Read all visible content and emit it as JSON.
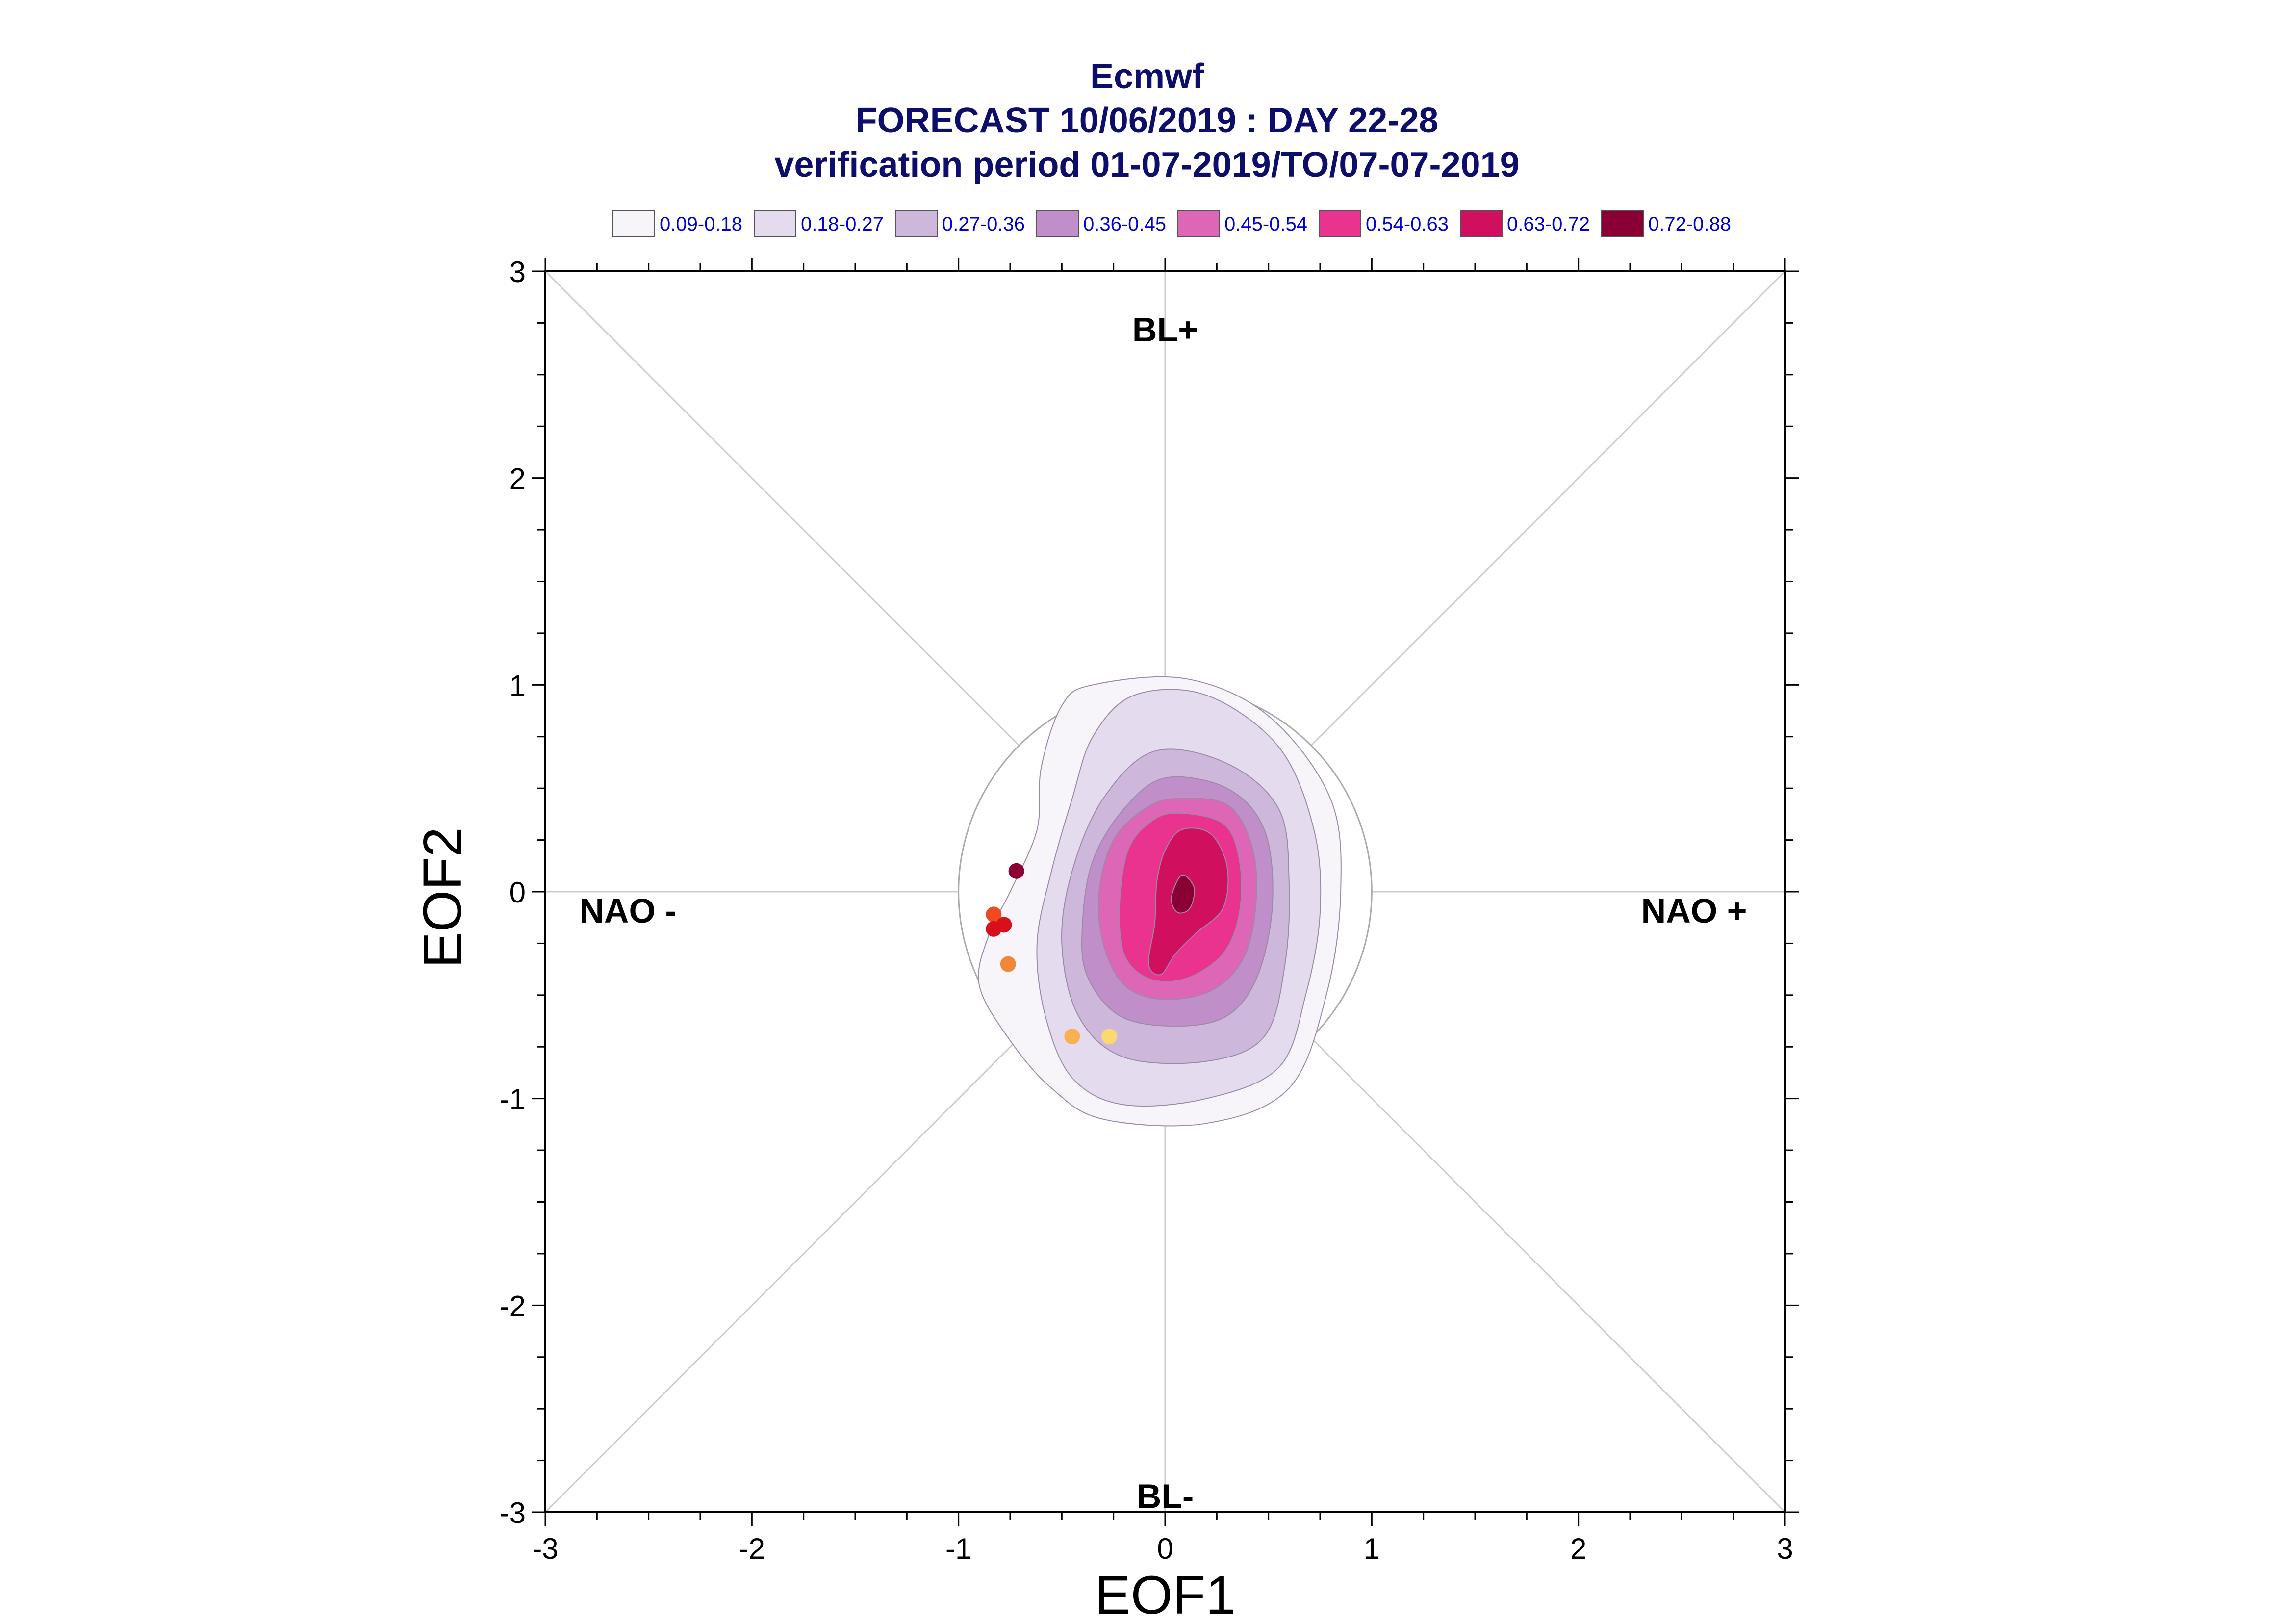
{
  "chart_data": {
    "type": "contour-scatter",
    "title_lines": [
      "Ecmwf",
      "FORECAST 10/06/2019 : DAY 22-28",
      "verification period 01-07-2019/TO/07-07-2019"
    ],
    "xlabel": "EOF1",
    "ylabel": "EOF2",
    "xlim": [
      -3,
      3
    ],
    "ylim": [
      -3,
      3
    ],
    "xticks": [
      "-3",
      "-2",
      "-1",
      "0",
      "1",
      "2",
      "3"
    ],
    "yticks": [
      "3",
      "2",
      "1",
      "0",
      "-1",
      "-2",
      "-3"
    ],
    "legend": [
      {
        "label": "0.09-0.18",
        "color": "#f7f4fa"
      },
      {
        "label": "0.18-0.27",
        "color": "#e4dcee"
      },
      {
        "label": "0.27-0.36",
        "color": "#cdb7da"
      },
      {
        "label": "0.36-0.45",
        "color": "#c08ec8"
      },
      {
        "label": "0.45-0.54",
        "color": "#de66b6"
      },
      {
        "label": "0.54-0.63",
        "color": "#e9338f"
      },
      {
        "label": "0.63-0.72",
        "color": "#d0105e"
      },
      {
        "label": "0.72-0.88",
        "color": "#8a0035"
      }
    ],
    "regions": [
      {
        "label": "BL+",
        "x": 0.0,
        "y": 2.72
      },
      {
        "label": "BL-",
        "x": 0.0,
        "y": -2.92
      },
      {
        "label": "NAO -",
        "x": -2.6,
        "y": -0.09
      },
      {
        "label": "NAO +",
        "x": 2.56,
        "y": -0.09
      }
    ],
    "reference_circle_radius": 1.0,
    "contours": [
      {
        "level": "0.09-0.18",
        "color": "#f7f4fa",
        "points": [
          [
            -0.35,
            1.0
          ],
          [
            0.1,
            1.03
          ],
          [
            0.5,
            0.85
          ],
          [
            0.8,
            0.45
          ],
          [
            0.85,
            0.0
          ],
          [
            0.78,
            -0.5
          ],
          [
            0.6,
            -0.95
          ],
          [
            0.2,
            -1.12
          ],
          [
            -0.3,
            -1.1
          ],
          [
            -0.55,
            -0.95
          ],
          [
            -0.75,
            -0.72
          ],
          [
            -0.9,
            -0.45
          ],
          [
            -0.85,
            -0.2
          ],
          [
            -0.75,
            0.0
          ],
          [
            -0.62,
            0.3
          ],
          [
            -0.6,
            0.6
          ],
          [
            -0.5,
            0.9
          ]
        ]
      },
      {
        "level": "0.18-0.27",
        "color": "#e4dcee",
        "points": [
          [
            -0.15,
            0.95
          ],
          [
            0.2,
            0.95
          ],
          [
            0.55,
            0.7
          ],
          [
            0.72,
            0.3
          ],
          [
            0.75,
            -0.1
          ],
          [
            0.68,
            -0.5
          ],
          [
            0.55,
            -0.85
          ],
          [
            0.2,
            -1.0
          ],
          [
            -0.2,
            -1.03
          ],
          [
            -0.45,
            -0.9
          ],
          [
            -0.58,
            -0.6
          ],
          [
            -0.62,
            -0.25
          ],
          [
            -0.55,
            0.1
          ],
          [
            -0.45,
            0.45
          ],
          [
            -0.35,
            0.75
          ]
        ]
      },
      {
        "level": "0.27-0.36",
        "color": "#cdb7da",
        "points": [
          [
            -0.05,
            0.68
          ],
          [
            0.3,
            0.62
          ],
          [
            0.55,
            0.4
          ],
          [
            0.6,
            0.05
          ],
          [
            0.58,
            -0.35
          ],
          [
            0.48,
            -0.7
          ],
          [
            0.2,
            -0.82
          ],
          [
            -0.2,
            -0.8
          ],
          [
            -0.42,
            -0.6
          ],
          [
            -0.5,
            -0.25
          ],
          [
            -0.45,
            0.1
          ],
          [
            -0.3,
            0.45
          ]
        ]
      },
      {
        "level": "0.36-0.45",
        "color": "#c08ec8",
        "points": [
          [
            0.0,
            0.55
          ],
          [
            0.3,
            0.5
          ],
          [
            0.48,
            0.3
          ],
          [
            0.52,
            -0.05
          ],
          [
            0.45,
            -0.4
          ],
          [
            0.3,
            -0.6
          ],
          [
            0.05,
            -0.65
          ],
          [
            -0.22,
            -0.6
          ],
          [
            -0.38,
            -0.4
          ],
          [
            -0.4,
            -0.15
          ],
          [
            -0.35,
            0.15
          ],
          [
            -0.2,
            0.4
          ]
        ]
      },
      {
        "level": "0.45-0.54",
        "color": "#de66b6",
        "points": [
          [
            0.05,
            0.45
          ],
          [
            0.3,
            0.42
          ],
          [
            0.42,
            0.22
          ],
          [
            0.44,
            -0.05
          ],
          [
            0.38,
            -0.32
          ],
          [
            0.22,
            -0.48
          ],
          [
            -0.02,
            -0.52
          ],
          [
            -0.2,
            -0.45
          ],
          [
            -0.3,
            -0.25
          ],
          [
            -0.32,
            0.0
          ],
          [
            -0.25,
            0.25
          ],
          [
            -0.1,
            0.4
          ]
        ]
      },
      {
        "level": "0.54-0.63",
        "color": "#e9338f",
        "points": [
          [
            0.05,
            0.38
          ],
          [
            0.28,
            0.33
          ],
          [
            0.36,
            0.15
          ],
          [
            0.36,
            -0.1
          ],
          [
            0.28,
            -0.3
          ],
          [
            0.1,
            -0.42
          ],
          [
            -0.08,
            -0.42
          ],
          [
            -0.2,
            -0.3
          ],
          [
            -0.22,
            -0.05
          ],
          [
            -0.18,
            0.2
          ],
          [
            -0.08,
            0.33
          ]
        ]
      },
      {
        "level": "0.63-0.72",
        "color": "#d0105e",
        "points": [
          [
            0.08,
            0.3
          ],
          [
            0.22,
            0.28
          ],
          [
            0.3,
            0.12
          ],
          [
            0.28,
            -0.08
          ],
          [
            0.15,
            -0.2
          ],
          [
            0.05,
            -0.3
          ],
          [
            -0.02,
            -0.4
          ],
          [
            -0.08,
            -0.35
          ],
          [
            -0.05,
            -0.15
          ],
          [
            -0.04,
            0.05
          ],
          [
            0.0,
            0.2
          ]
        ]
      },
      {
        "level": "0.72-0.88",
        "color": "#8a0035",
        "points": [
          [
            0.08,
            0.08
          ],
          [
            0.14,
            0.02
          ],
          [
            0.12,
            -0.08
          ],
          [
            0.06,
            -0.1
          ],
          [
            0.03,
            -0.03
          ]
        ]
      }
    ],
    "scatter": [
      {
        "x": -0.72,
        "y": 0.1,
        "color": "#8a0035"
      },
      {
        "x": -0.83,
        "y": -0.11,
        "color": "#f04a20"
      },
      {
        "x": -0.83,
        "y": -0.18,
        "color": "#d8101c"
      },
      {
        "x": -0.78,
        "y": -0.16,
        "color": "#d8101c"
      },
      {
        "x": -0.76,
        "y": -0.35,
        "color": "#f0883a"
      },
      {
        "x": -0.45,
        "y": -0.7,
        "color": "#f8b050"
      },
      {
        "x": -0.27,
        "y": -0.7,
        "color": "#fcd870"
      }
    ]
  }
}
